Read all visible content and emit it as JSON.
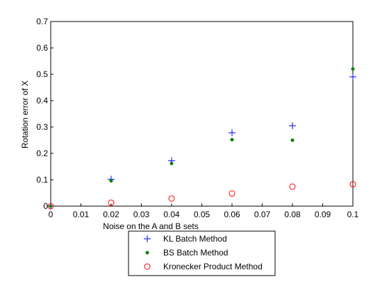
{
  "chart_data": {
    "type": "scatter",
    "title": "",
    "xlabel": "Noise on the A and B sets",
    "ylabel": "Rotation error of X",
    "xlim": [
      0,
      0.1
    ],
    "ylim": [
      0,
      0.7
    ],
    "xticks": [
      0,
      0.01,
      0.02,
      0.03,
      0.04,
      0.05,
      0.06,
      0.07,
      0.08,
      0.09,
      0.1
    ],
    "xtick_labels": [
      "0",
      "0.01",
      "0.02",
      "0.03",
      "0.04",
      "0.05",
      "0.06",
      "0.07",
      "0.08",
      "0.09",
      "0.1"
    ],
    "yticks": [
      0,
      0.1,
      0.2,
      0.3,
      0.4,
      0.5,
      0.6,
      0.7
    ],
    "ytick_labels": [
      "0",
      "0.1",
      "0.2",
      "0.3",
      "0.4",
      "0.5",
      "0.6",
      "0.7"
    ],
    "grid": false,
    "legend_position": "bottom-center",
    "series": [
      {
        "name": "KL Batch Method",
        "marker": "plus",
        "color": "#0000ff",
        "x": [
          0,
          0.02,
          0.04,
          0.06,
          0.08,
          0.1
        ],
        "y": [
          0.0,
          0.102,
          0.172,
          0.278,
          0.305,
          0.49
        ]
      },
      {
        "name": "BS Batch Method",
        "marker": "dot",
        "color": "#008000",
        "x": [
          0,
          0.02,
          0.04,
          0.06,
          0.08,
          0.1
        ],
        "y": [
          0.0,
          0.096,
          0.162,
          0.252,
          0.25,
          0.52
        ]
      },
      {
        "name": "Kronecker Product Method",
        "marker": "circle",
        "color": "#ff0000",
        "x": [
          0,
          0.02,
          0.04,
          0.06,
          0.08,
          0.1
        ],
        "y": [
          0.0,
          0.013,
          0.029,
          0.048,
          0.074,
          0.083
        ]
      }
    ]
  }
}
